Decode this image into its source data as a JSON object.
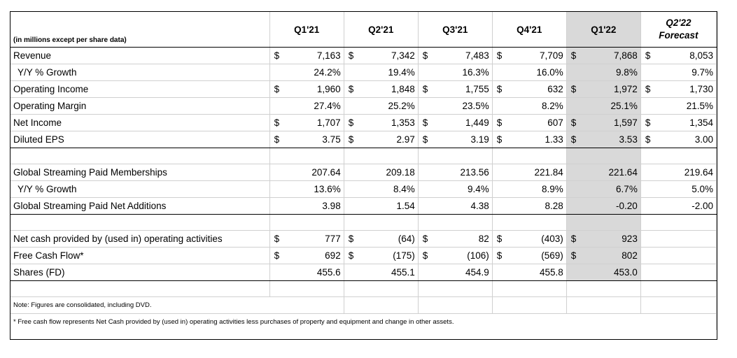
{
  "header": {
    "label": "(in millions except per share data)",
    "q121": "Q1'21",
    "q221": "Q2'21",
    "q321": "Q3'21",
    "q421": "Q4'21",
    "q122": "Q1'22",
    "forecast_line1": "Q2'22",
    "forecast_line2": "Forecast"
  },
  "currency_symbol": "$",
  "rows": {
    "revenue": {
      "label": "Revenue",
      "v": [
        "7,163",
        "7,342",
        "7,483",
        "7,709",
        "7,868",
        "8,053"
      ]
    },
    "rev_growth": {
      "label": "Y/Y % Growth",
      "v": [
        "24.2%",
        "19.4%",
        "16.3%",
        "16.0%",
        "9.8%",
        "9.7%"
      ]
    },
    "op_income": {
      "label": "Operating Income",
      "v": [
        "1,960",
        "1,848",
        "1,755",
        "632",
        "1,972",
        "1,730"
      ]
    },
    "op_margin": {
      "label": "Operating Margin",
      "v": [
        "27.4%",
        "25.2%",
        "23.5%",
        "8.2%",
        "25.1%",
        "21.5%"
      ]
    },
    "net_income": {
      "label": "Net Income",
      "v": [
        "1,707",
        "1,353",
        "1,449",
        "607",
        "1,597",
        "1,354"
      ]
    },
    "eps": {
      "label": "Diluted EPS",
      "v": [
        "3.75",
        "2.97",
        "3.19",
        "1.33",
        "3.53",
        "3.00"
      ]
    },
    "memberships": {
      "label": "Global Streaming Paid Memberships",
      "v": [
        "207.64",
        "209.18",
        "213.56",
        "221.84",
        "221.64",
        "219.64"
      ]
    },
    "mem_growth": {
      "label": "Y/Y % Growth",
      "v": [
        "13.6%",
        "8.4%",
        "9.4%",
        "8.9%",
        "6.7%",
        "5.0%"
      ]
    },
    "net_adds": {
      "label": "Global Streaming Paid Net Additions",
      "v": [
        "3.98",
        "1.54",
        "4.38",
        "8.28",
        "-0.20",
        "-2.00"
      ]
    },
    "op_cash": {
      "label": "Net cash provided by (used in) operating activities",
      "v": [
        "777",
        "(64)",
        "82",
        "(403)",
        "923",
        ""
      ]
    },
    "fcf": {
      "label": "Free Cash Flow*",
      "v": [
        "692",
        "(175)",
        "(106)",
        "(569)",
        "802",
        ""
      ]
    },
    "shares": {
      "label": "Shares (FD)",
      "v": [
        "455.6",
        "455.1",
        "454.9",
        "455.8",
        "453.0",
        ""
      ]
    }
  },
  "notes": {
    "note1": "Note: Figures are consolidated, including DVD.",
    "note2": "* Free cash flow represents Net Cash provided by (used in) operating activities less purchases of property and equipment and change in other assets."
  }
}
